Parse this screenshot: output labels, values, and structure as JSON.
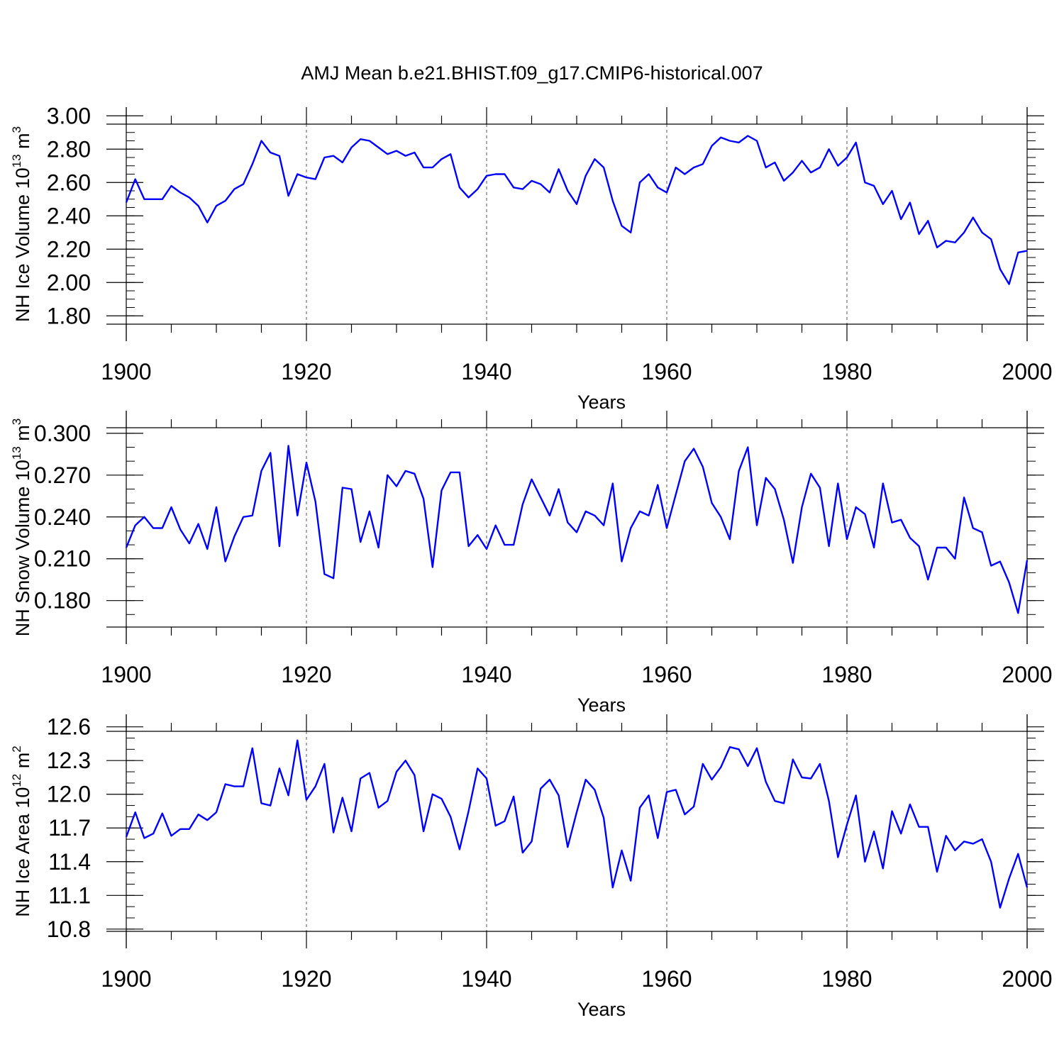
{
  "title": "AMJ Mean b.e21.BHIST.f09_g17.CMIP6-historical.007",
  "colors": {
    "line": "#0000ff",
    "axis": "#000000",
    "grid": "#555555"
  },
  "chart_data": [
    {
      "type": "line",
      "name": "nh-ice-volume",
      "ylabel_parts": [
        "NH Ice Volume 10",
        "13",
        " m",
        "3"
      ],
      "xlabel": "Years",
      "xlim": [
        1900,
        2000
      ],
      "ylim": [
        1.75,
        2.95
      ],
      "x_ticks": [
        1900,
        1920,
        1940,
        1960,
        1980,
        2000
      ],
      "x_tick_labels": [
        "1900",
        "1920",
        "1940",
        "1960",
        "1980",
        "2000"
      ],
      "y_ticks": [
        1.8,
        2.0,
        2.2,
        2.4,
        2.6,
        2.8,
        3.0
      ],
      "y_tick_labels": [
        "1.80",
        "2.00",
        "2.20",
        "2.40",
        "2.60",
        "2.80",
        "3.00"
      ],
      "y_minor_step": 0.05,
      "x_start": 1900,
      "values": [
        2.48,
        2.62,
        2.5,
        2.5,
        2.5,
        2.58,
        2.54,
        2.51,
        2.46,
        2.36,
        2.46,
        2.49,
        2.56,
        2.59,
        2.71,
        2.85,
        2.78,
        2.76,
        2.52,
        2.65,
        2.63,
        2.62,
        2.75,
        2.76,
        2.72,
        2.81,
        2.86,
        2.85,
        2.81,
        2.77,
        2.79,
        2.76,
        2.78,
        2.69,
        2.69,
        2.74,
        2.77,
        2.57,
        2.51,
        2.56,
        2.64,
        2.65,
        2.65,
        2.57,
        2.56,
        2.61,
        2.59,
        2.54,
        2.68,
        2.55,
        2.47,
        2.64,
        2.74,
        2.69,
        2.49,
        2.34,
        2.3,
        2.6,
        2.65,
        2.57,
        2.54,
        2.69,
        2.65,
        2.69,
        2.71,
        2.82,
        2.87,
        2.85,
        2.84,
        2.88,
        2.85,
        2.69,
        2.72,
        2.61,
        2.66,
        2.73,
        2.66,
        2.69,
        2.8,
        2.7,
        2.75,
        2.84,
        2.6,
        2.58,
        2.47,
        2.55,
        2.38,
        2.48,
        2.29,
        2.37,
        2.21,
        2.25,
        2.24,
        2.3,
        2.39,
        2.3,
        2.26,
        2.08,
        1.99,
        2.18,
        2.19
      ]
    },
    {
      "type": "line",
      "name": "nh-snow-volume",
      "ylabel_parts": [
        "NH Snow Volume 10",
        "13",
        " m",
        "3"
      ],
      "xlabel": "Years",
      "xlim": [
        1900,
        2000
      ],
      "ylim": [
        0.161,
        0.304
      ],
      "x_ticks": [
        1900,
        1920,
        1940,
        1960,
        1980,
        2000
      ],
      "x_tick_labels": [
        "1900",
        "1920",
        "1940",
        "1960",
        "1980",
        "2000"
      ],
      "y_ticks": [
        0.18,
        0.21,
        0.24,
        0.27,
        0.3
      ],
      "y_tick_labels": [
        "0.180",
        "0.210",
        "0.240",
        "0.270",
        "0.300"
      ],
      "y_minor_step": 0.01,
      "x_start": 1900,
      "values": [
        0.218,
        0.234,
        0.24,
        0.232,
        0.232,
        0.247,
        0.231,
        0.221,
        0.235,
        0.217,
        0.247,
        0.208,
        0.226,
        0.24,
        0.241,
        0.273,
        0.286,
        0.219,
        0.291,
        0.241,
        0.279,
        0.251,
        0.199,
        0.196,
        0.261,
        0.26,
        0.222,
        0.244,
        0.218,
        0.27,
        0.262,
        0.273,
        0.271,
        0.253,
        0.204,
        0.259,
        0.272,
        0.272,
        0.219,
        0.227,
        0.217,
        0.234,
        0.22,
        0.22,
        0.249,
        0.267,
        0.254,
        0.241,
        0.26,
        0.236,
        0.229,
        0.244,
        0.241,
        0.234,
        0.264,
        0.208,
        0.232,
        0.244,
        0.241,
        0.263,
        0.232,
        0.256,
        0.28,
        0.289,
        0.276,
        0.25,
        0.24,
        0.224,
        0.273,
        0.29,
        0.234,
        0.268,
        0.26,
        0.238,
        0.207,
        0.247,
        0.271,
        0.261,
        0.219,
        0.264,
        0.224,
        0.247,
        0.242,
        0.218,
        0.264,
        0.236,
        0.238,
        0.225,
        0.219,
        0.195,
        0.218,
        0.218,
        0.21,
        0.254,
        0.232,
        0.229,
        0.205,
        0.208,
        0.193,
        0.171,
        0.209
      ]
    },
    {
      "type": "line",
      "name": "nh-ice-area",
      "ylabel_parts": [
        "NH Ice Area 10",
        "12",
        " m",
        "2"
      ],
      "xlabel": "Years",
      "xlim": [
        1900,
        2000
      ],
      "ylim": [
        10.78,
        12.56
      ],
      "x_ticks": [
        1900,
        1920,
        1940,
        1960,
        1980,
        2000
      ],
      "x_tick_labels": [
        "1900",
        "1920",
        "1940",
        "1960",
        "1980",
        "2000"
      ],
      "y_ticks": [
        10.8,
        11.1,
        11.4,
        11.7,
        12.0,
        12.3,
        12.6
      ],
      "y_tick_labels": [
        "10.8",
        "11.1",
        "11.4",
        "11.7",
        "12.0",
        "12.3",
        "12.6"
      ],
      "y_minor_step": 0.1,
      "x_start": 1900,
      "values": [
        11.62,
        11.84,
        11.61,
        11.65,
        11.83,
        11.63,
        11.69,
        11.69,
        11.82,
        11.77,
        11.84,
        12.09,
        12.07,
        12.07,
        12.41,
        11.92,
        11.9,
        12.23,
        11.99,
        12.48,
        11.95,
        12.07,
        12.27,
        11.66,
        11.97,
        11.67,
        12.14,
        12.19,
        11.88,
        11.94,
        12.2,
        12.3,
        12.17,
        11.67,
        12.0,
        11.96,
        11.8,
        11.51,
        11.85,
        12.23,
        12.14,
        11.72,
        11.76,
        11.98,
        11.48,
        11.58,
        12.05,
        12.13,
        11.99,
        11.53,
        11.84,
        12.13,
        12.04,
        11.79,
        11.17,
        11.5,
        11.23,
        11.88,
        11.99,
        11.61,
        12.02,
        12.04,
        11.82,
        11.89,
        12.27,
        12.13,
        12.24,
        12.42,
        12.4,
        12.25,
        12.41,
        12.11,
        11.94,
        11.92,
        12.31,
        12.15,
        12.14,
        12.27,
        11.94,
        11.44,
        11.73,
        11.99,
        11.4,
        11.67,
        11.34,
        11.85,
        11.65,
        11.91,
        11.71,
        11.71,
        11.31,
        11.63,
        11.5,
        11.58,
        11.56,
        11.6,
        11.4,
        10.99,
        11.25,
        11.47,
        11.17
      ]
    }
  ]
}
